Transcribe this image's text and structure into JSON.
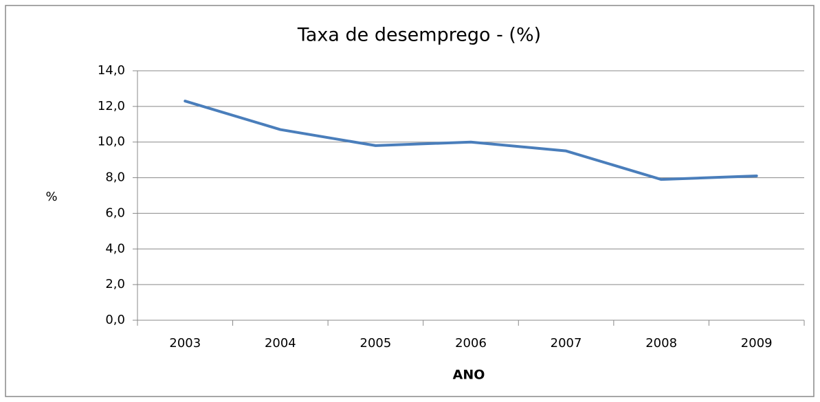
{
  "chart_data": {
    "type": "line",
    "title": "Taxa de desemprego - (%)",
    "xlabel": "ANO",
    "ylabel": "%",
    "categories": [
      "2003",
      "2004",
      "2005",
      "2006",
      "2007",
      "2008",
      "2009"
    ],
    "values": [
      12.3,
      10.7,
      9.8,
      10.0,
      9.5,
      7.9,
      8.1
    ],
    "color": "#4a7ebb",
    "ylim": [
      0,
      14
    ],
    "yticks": [
      {
        "value": 0,
        "label": "0,0"
      },
      {
        "value": 2,
        "label": "2,0"
      },
      {
        "value": 4,
        "label": "4,0"
      },
      {
        "value": 6,
        "label": "6,0"
      },
      {
        "value": 8,
        "label": "8,0"
      },
      {
        "value": 10,
        "label": "10,0"
      },
      {
        "value": 12,
        "label": "12,0"
      },
      {
        "value": 14,
        "label": "14,0"
      }
    ],
    "grid": true
  }
}
